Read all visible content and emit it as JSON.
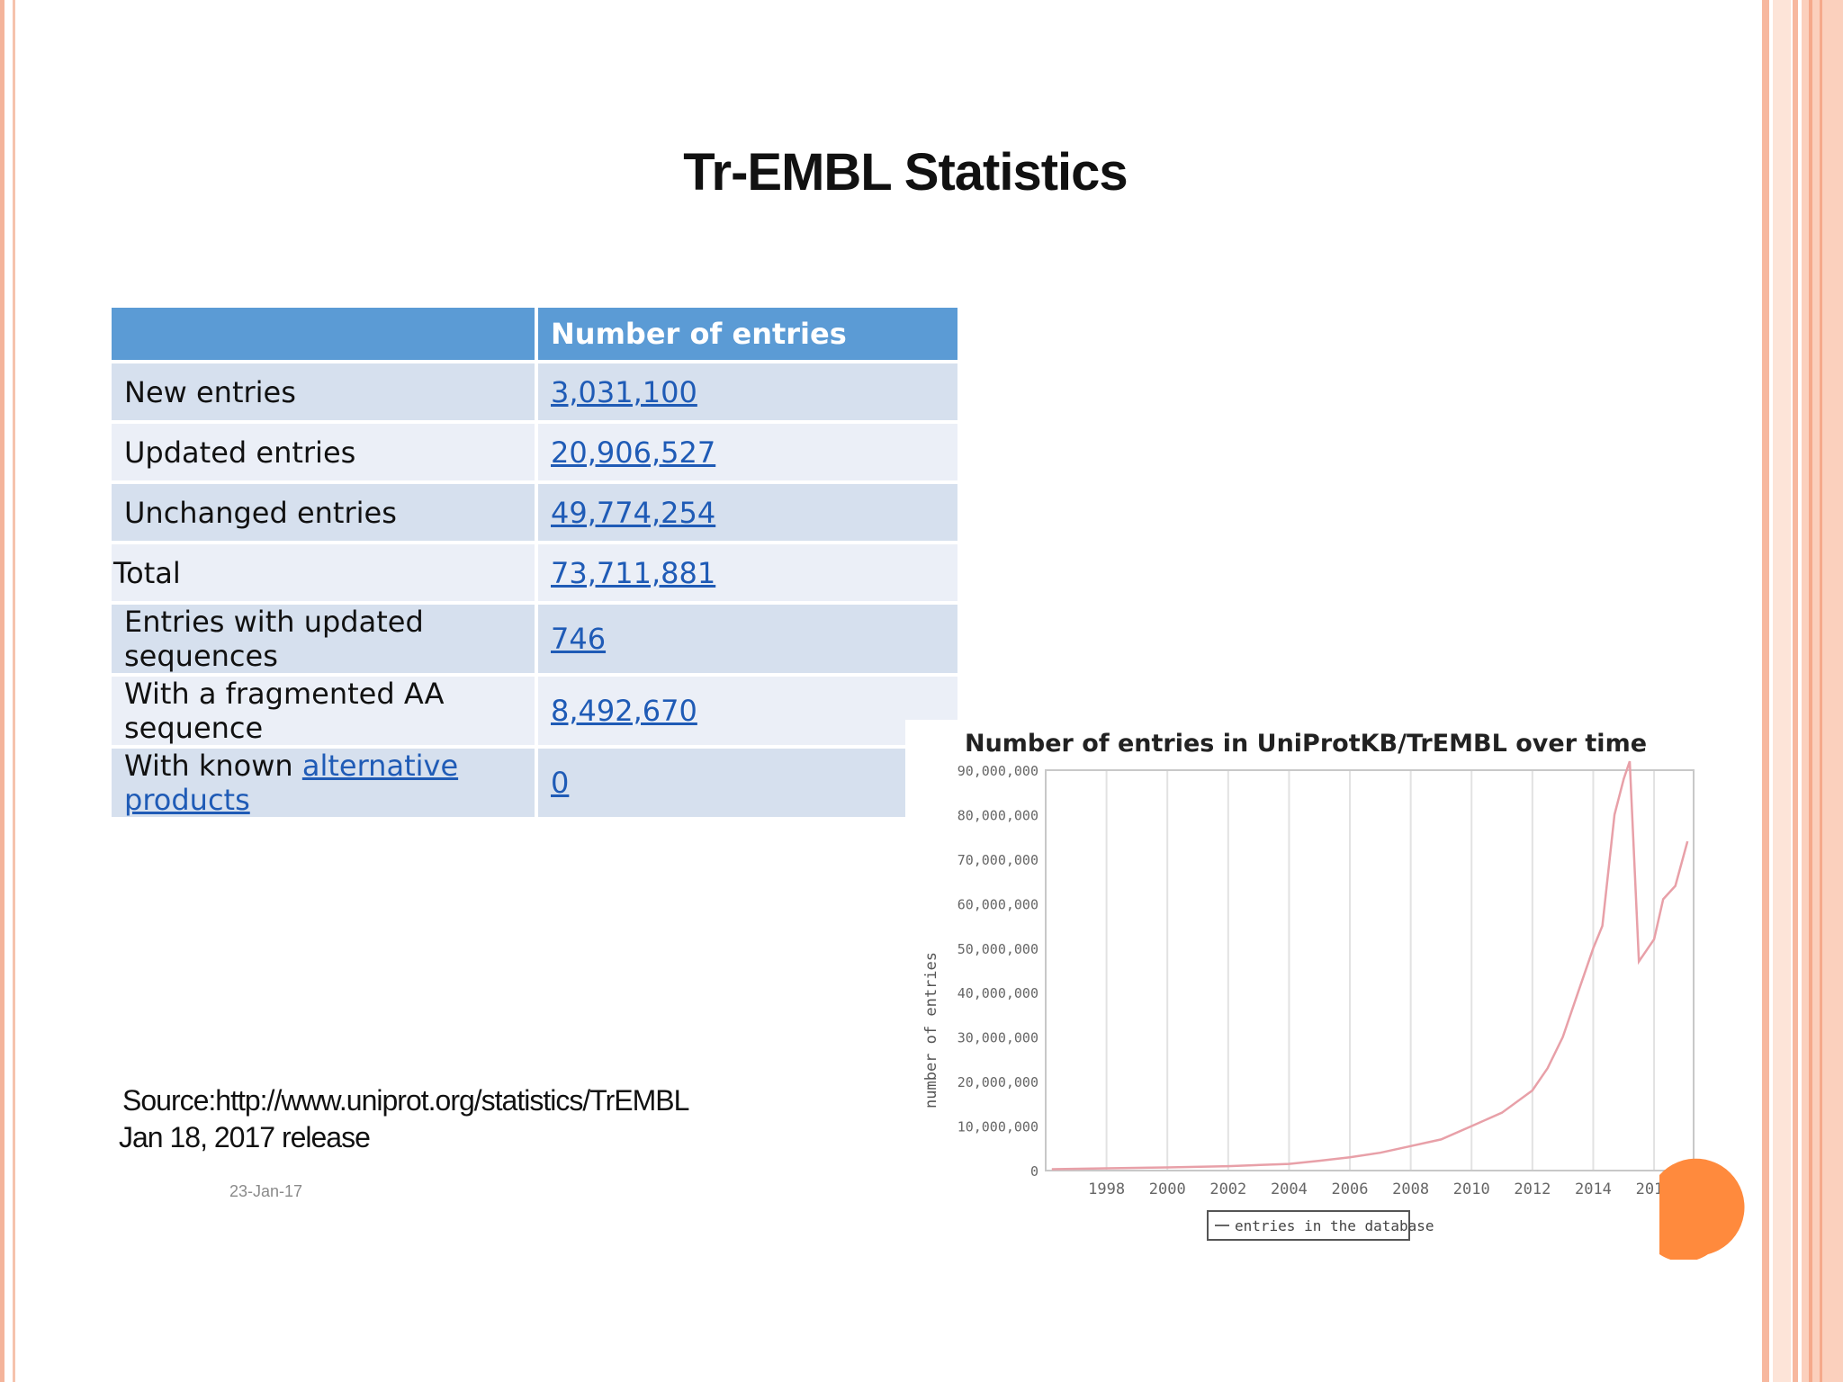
{
  "title": "Tr-EMBL Statistics",
  "table": {
    "header": [
      "",
      "Number of entries"
    ],
    "rows": [
      {
        "label": "New entries",
        "value": "3,031,100"
      },
      {
        "label": "Updated entries",
        "value": "20,906,527"
      },
      {
        "label": "Unchanged entries",
        "value": "49,774,254"
      },
      {
        "label": "Total",
        "value": "73,711,881"
      },
      {
        "label": "Entries with updated sequences",
        "value": "746"
      },
      {
        "label": "With a fragmented AA sequence",
        "value": "8,492,670"
      },
      {
        "label_prefix": "With known ",
        "label_link": "alternative products",
        "value": "0"
      }
    ]
  },
  "source": {
    "line1": "Source:http://www.uniprot.org/statistics/TrEMBL",
    "line2": "Jan 18, 2017 release"
  },
  "date": "23-Jan-17",
  "colors": {
    "header_blue": "#5b9bd5",
    "link": "#1f5bb6",
    "series": "#e8a0a8",
    "accent_orange": "#ff8a3d"
  },
  "chart_data": {
    "type": "line",
    "title": "Number of entries in UniProtKB/TrEMBL over time",
    "ylabel": "number of entries",
    "xlabel": "",
    "xlim": [
      1996,
      2017.3
    ],
    "ylim": [
      0,
      90000000
    ],
    "x_ticks": [
      "1998",
      "2000",
      "2002",
      "2004",
      "2006",
      "2008",
      "2010",
      "2012",
      "2014",
      "2016"
    ],
    "y_ticks": [
      "0",
      "10,000,000",
      "20,000,000",
      "30,000,000",
      "40,000,000",
      "50,000,000",
      "60,000,000",
      "70,000,000",
      "80,000,000",
      "90,000,000"
    ],
    "grid": "vertical",
    "legend": "bottom",
    "series": [
      {
        "name": "entries in the database",
        "x": [
          1996.2,
          1998,
          2000,
          2002,
          2004,
          2005,
          2006,
          2007,
          2008,
          2009,
          2010,
          2011,
          2012,
          2012.5,
          2013,
          2013.5,
          2014,
          2014.3,
          2014.7,
          2015.0,
          2015.2,
          2015.5,
          2016.0,
          2016.3,
          2016.7,
          2017.1
        ],
        "y": [
          300000,
          500000,
          700000,
          1000000,
          1500000,
          2200000,
          3000000,
          4000000,
          5500000,
          7000000,
          10000000,
          13000000,
          18000000,
          23000000,
          30000000,
          40000000,
          50000000,
          55000000,
          80000000,
          88000000,
          92000000,
          47000000,
          52000000,
          61000000,
          64000000,
          74000000
        ]
      }
    ]
  }
}
